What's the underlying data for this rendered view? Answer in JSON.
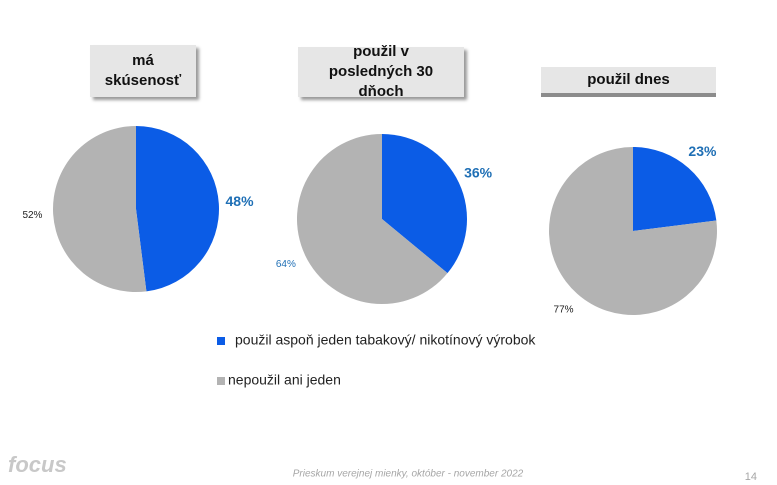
{
  "chart_data": [
    {
      "type": "pie",
      "title": "má skúsenosť",
      "values": [
        48,
        52
      ],
      "value_labels": [
        "48%",
        "52%"
      ]
    },
    {
      "type": "pie",
      "title": "použil v posledných 30 dňoch",
      "values": [
        36,
        64
      ],
      "value_labels": [
        "36%",
        "64%"
      ]
    },
    {
      "type": "pie",
      "title": "použil dnes",
      "values": [
        23,
        77
      ],
      "value_labels": [
        "23%",
        "77%"
      ]
    }
  ],
  "legend": [
    {
      "name": "použil aspoň jeden tabakový/ nikotínový výrobok",
      "color": "#0b5ce6"
    },
    {
      "name": "nepoužil ani jeden",
      "color": "#b3b3b3"
    }
  ],
  "footer": "Prieskum verejnej mienky, október - november 2022",
  "page_number": "14",
  "logo": "focus"
}
